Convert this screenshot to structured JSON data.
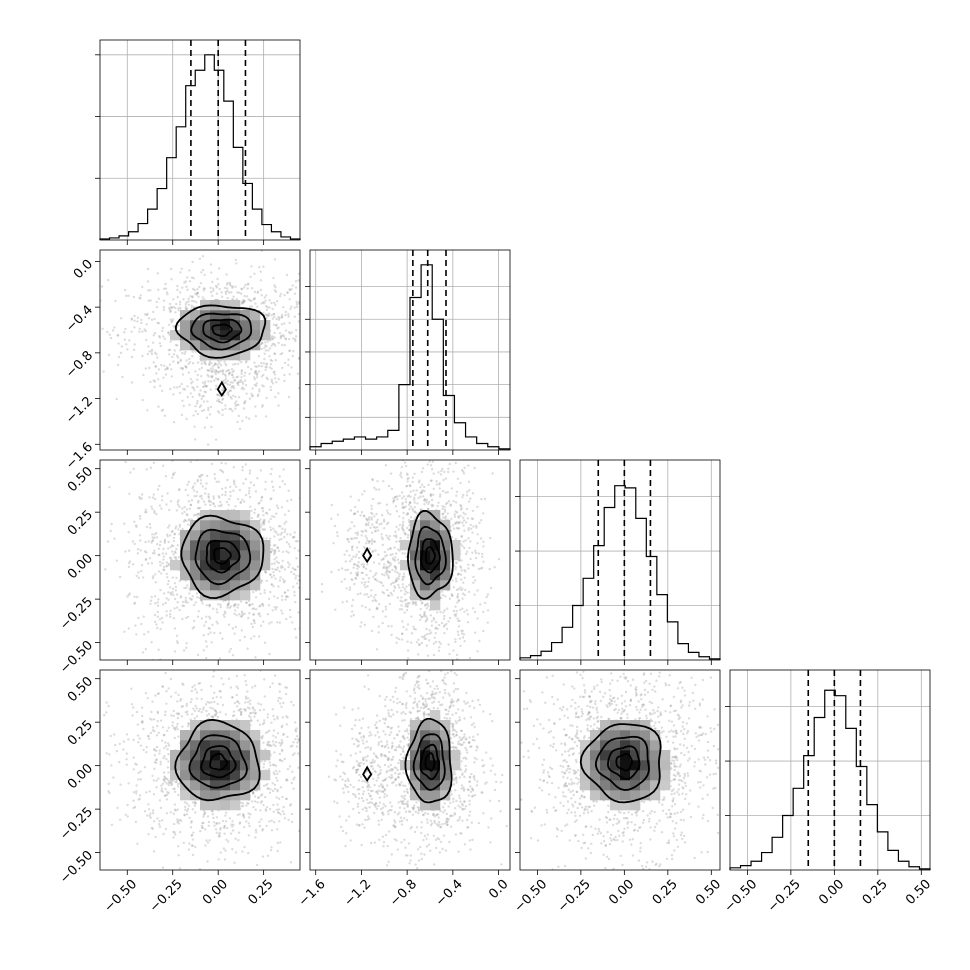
{
  "chart_data": {
    "type": "corner",
    "n_params": 4,
    "grid": true,
    "params": [
      {
        "range": [
          -0.65,
          0.45
        ],
        "ticks": [
          -0.5,
          -0.25,
          0.0,
          0.25
        ],
        "tick_labels": [
          "−0.50",
          "−0.25",
          "0.00",
          "0.25"
        ],
        "quantiles": [
          -0.15,
          0.0,
          0.15
        ],
        "hist_peak_prob": 0.18,
        "hist_y_ticks_prob": [
          0.06,
          0.12,
          0.18
        ],
        "hist_bins": [
          0.001,
          0.002,
          0.004,
          0.008,
          0.016,
          0.03,
          0.05,
          0.08,
          0.11,
          0.15,
          0.165,
          0.18,
          0.165,
          0.135,
          0.09,
          0.055,
          0.03,
          0.015,
          0.008,
          0.003,
          0.001
        ]
      },
      {
        "range": [
          -1.65,
          0.1
        ],
        "ticks": [
          -1.6,
          -1.2,
          -0.8,
          -0.4,
          0.0
        ],
        "tick_labels": [
          "−1.6",
          "−1.2",
          "−0.8",
          "−0.4",
          "0.0"
        ],
        "quantiles": [
          -0.75,
          -0.62,
          -0.46
        ],
        "hist_peak_prob": 0.17,
        "hist_y_ticks_prob": [
          0.03,
          0.06,
          0.09,
          0.12,
          0.15
        ],
        "hist_bins": [
          0.003,
          0.006,
          0.008,
          0.01,
          0.012,
          0.01,
          0.012,
          0.018,
          0.06,
          0.14,
          0.17,
          0.12,
          0.05,
          0.025,
          0.012,
          0.006,
          0.003,
          0.001
        ]
      },
      {
        "range": [
          -0.6,
          0.55
        ],
        "ticks": [
          -0.5,
          -0.25,
          0.0,
          0.25,
          0.5
        ],
        "tick_labels": [
          "−0.50",
          "−0.25",
          "0.00",
          "0.25",
          "0.50"
        ],
        "quantiles": [
          -0.15,
          0.0,
          0.15
        ],
        "hist_peak_prob": 0.17,
        "hist_y_ticks_prob": [
          0.05,
          0.1,
          0.15
        ],
        "hist_bins": [
          0.002,
          0.004,
          0.008,
          0.016,
          0.03,
          0.05,
          0.075,
          0.105,
          0.14,
          0.16,
          0.158,
          0.13,
          0.095,
          0.06,
          0.035,
          0.015,
          0.007,
          0.003,
          0.001
        ]
      },
      {
        "range": [
          -0.6,
          0.55
        ],
        "ticks": [
          -0.5,
          -0.25,
          0.0,
          0.25,
          0.5
        ],
        "tick_labels": [
          "−0.50",
          "−0.25",
          "0.00",
          "0.25",
          "0.50"
        ],
        "quantiles": [
          -0.15,
          0.0,
          0.15
        ],
        "hist_peak_prob": 0.17,
        "hist_y_ticks_prob": [
          0.05,
          0.1,
          0.15
        ],
        "hist_bins": [
          0.002,
          0.004,
          0.008,
          0.016,
          0.03,
          0.05,
          0.075,
          0.105,
          0.14,
          0.165,
          0.16,
          0.13,
          0.095,
          0.06,
          0.035,
          0.018,
          0.008,
          0.003,
          0.001
        ]
      }
    ],
    "pairs": [
      {
        "x": 0,
        "y": 1,
        "center": [
          0.02,
          -0.6
        ],
        "sigma": [
          0.15,
          0.14
        ],
        "secondary": [
          0.02,
          -1.12
        ],
        "levels": [
          0.35,
          0.7,
          1.1,
          1.6
        ]
      },
      {
        "x": 0,
        "y": 2,
        "center": [
          0.02,
          0.0
        ],
        "sigma": [
          0.15,
          0.15
        ],
        "secondary": null,
        "levels": [
          0.3,
          0.6,
          1.0,
          1.5
        ]
      },
      {
        "x": 1,
        "y": 2,
        "center": [
          -0.6,
          0.0
        ],
        "sigma": [
          0.13,
          0.16
        ],
        "secondary": [
          -1.15,
          0.0
        ],
        "levels": [
          0.3,
          0.6,
          1.0,
          1.5
        ]
      },
      {
        "x": 0,
        "y": 3,
        "center": [
          0.0,
          0.02
        ],
        "sigma": [
          0.15,
          0.15
        ],
        "secondary": null,
        "levels": [
          0.3,
          0.6,
          1.0,
          1.5
        ]
      },
      {
        "x": 1,
        "y": 3,
        "center": [
          -0.6,
          0.02
        ],
        "sigma": [
          0.13,
          0.16
        ],
        "secondary": [
          -1.15,
          -0.05
        ],
        "levels": [
          0.3,
          0.6,
          1.0,
          1.5
        ]
      },
      {
        "x": 2,
        "y": 3,
        "center": [
          0.0,
          0.02
        ],
        "sigma": [
          0.15,
          0.15
        ],
        "secondary": null,
        "levels": [
          0.3,
          0.6,
          1.0,
          1.5
        ]
      }
    ]
  }
}
